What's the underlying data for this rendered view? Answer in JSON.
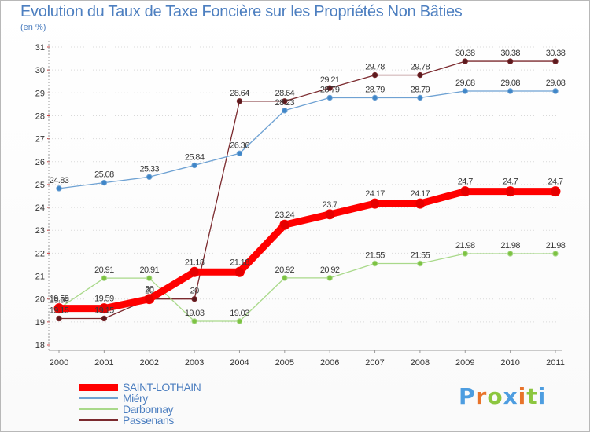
{
  "page": {
    "title": "Evolution du Taux de Taxe Foncière sur les Propriétés Non Bâties",
    "unit": "(en %)"
  },
  "logo": {
    "text": "Proxiti",
    "colors": [
      "#4d9de0",
      "#e8732a",
      "#8cc63f",
      "#4d9de0",
      "#e8732a",
      "#8cc63f",
      "#4d9de0"
    ]
  },
  "chart_data": {
    "type": "line",
    "title": "Evolution du Taux de Taxe Foncière sur les Propriétés Non Bâties",
    "ylabel": "(en %)",
    "xlabel": "",
    "ylim": [
      18,
      31
    ],
    "yticks": [
      "18",
      "19",
      "20",
      "21",
      "22",
      "23",
      "24",
      "25",
      "26",
      "27",
      "28",
      "29",
      "30",
      "31"
    ],
    "categories": [
      "2000",
      "2001",
      "2002",
      "2003",
      "2004",
      "2005",
      "2006",
      "2007",
      "2008",
      "2009",
      "2010",
      "2011"
    ],
    "grid": "horizontal dotted",
    "legend": "bottom-left",
    "series": [
      {
        "name": "Passenans",
        "color": "#7b2a2e",
        "values": [
          19.15,
          19.15,
          20,
          20,
          28.64,
          28.64,
          29.21,
          29.78,
          29.78,
          30.38,
          30.38,
          30.38
        ],
        "labels": [
          "19.15",
          "19.15",
          "20",
          "20",
          "28.64",
          "28.64",
          "29.21",
          "29.78",
          "29.78",
          "30.38",
          "30.38",
          "30.38"
        ]
      },
      {
        "name": "Darbonnay",
        "color": "#a9d98a",
        "values": [
          19.59,
          20.91,
          20.91,
          19.03,
          19.03,
          20.92,
          20.92,
          21.55,
          21.55,
          21.98,
          21.98,
          21.98
        ],
        "labels": [
          "19.59",
          "20.91",
          "20.91",
          "19.03",
          "19.03",
          "20.92",
          "20.92",
          "21.55",
          "21.55",
          "21.98",
          "21.98",
          "21.98"
        ]
      },
      {
        "name": "Miéry",
        "color": "#6fa2d3",
        "values": [
          24.83,
          25.08,
          25.33,
          25.84,
          26.36,
          28.23,
          28.79,
          28.79,
          28.79,
          29.08,
          29.08,
          29.08
        ],
        "labels": [
          "24.83",
          "25.08",
          "25.33",
          "25.84",
          "26.36",
          "28.23",
          "28.79",
          "28.79",
          "28.79",
          "29.08",
          "29.08",
          "29.08"
        ]
      },
      {
        "name": "SAINT-LOTHAIN",
        "color": "#ff0000",
        "values": [
          19.59,
          19.59,
          20,
          21.18,
          21.18,
          23.24,
          23.7,
          24.17,
          24.17,
          24.7,
          24.7,
          24.7
        ],
        "labels": [
          "19.59",
          "19.59",
          "20",
          "21.18",
          "21.18",
          "23.24",
          "23.7",
          "24.17",
          "24.17",
          "24.7",
          "24.7",
          "24.7"
        ]
      }
    ],
    "legend_entries": [
      {
        "name": "SAINT-LOTHAIN",
        "color": "#ff0000"
      },
      {
        "name": "Miéry",
        "color": "#6fa2d3"
      },
      {
        "name": "Darbonnay",
        "color": "#a9d98a"
      },
      {
        "name": "Passenans",
        "color": "#7b2a2e"
      }
    ]
  }
}
